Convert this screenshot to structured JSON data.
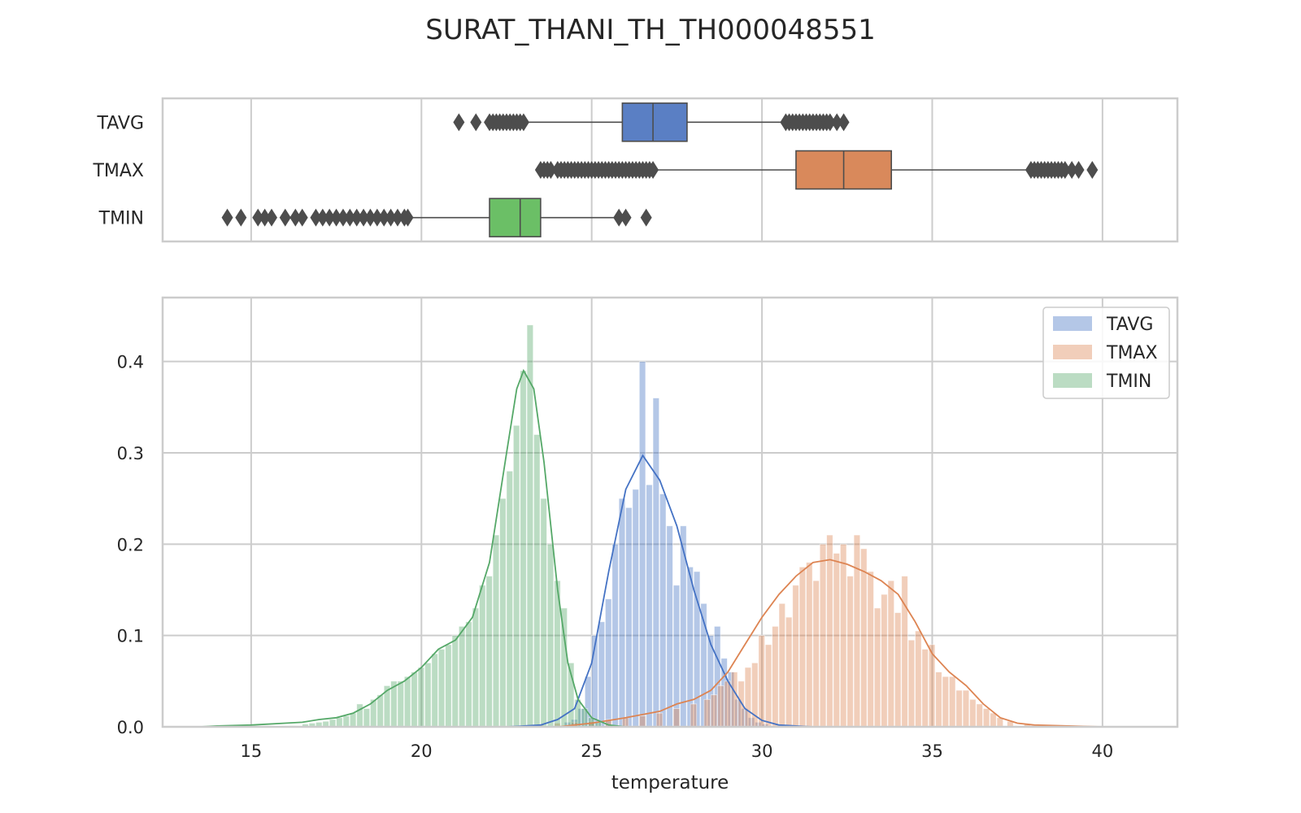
{
  "chart_data": [
    {
      "type": "box",
      "title": "SURAT_THANI_TH_TH000048551",
      "xlim": [
        12.4,
        42.2
      ],
      "grid": true,
      "series": [
        {
          "name": "TAVG",
          "color": "#5a7fc4",
          "q1": 25.9,
          "median": 26.8,
          "q3": 27.8,
          "whisker_low": 23.1,
          "whisker_high": 30.6,
          "outliers": [
            21.1,
            21.6,
            22.0,
            22.1,
            22.2,
            22.3,
            22.4,
            22.5,
            22.6,
            22.7,
            22.8,
            22.9,
            23.0,
            30.7,
            30.8,
            30.9,
            31.0,
            31.1,
            31.2,
            31.3,
            31.4,
            31.5,
            31.6,
            31.7,
            31.8,
            31.9,
            32.0,
            32.2,
            32.4
          ]
        },
        {
          "name": "TMAX",
          "color": "#d9895b",
          "q1": 31.0,
          "median": 32.4,
          "q3": 33.8,
          "whisker_low": 26.9,
          "whisker_high": 37.8,
          "outliers": [
            23.5,
            23.6,
            23.7,
            23.8,
            24.0,
            24.1,
            24.2,
            24.3,
            24.4,
            24.5,
            24.6,
            24.7,
            24.8,
            24.9,
            25.0,
            25.1,
            25.2,
            25.3,
            25.4,
            25.5,
            25.6,
            25.7,
            25.8,
            25.9,
            26.0,
            26.1,
            26.2,
            26.3,
            26.4,
            26.5,
            26.6,
            26.7,
            26.8,
            37.9,
            38.0,
            38.1,
            38.2,
            38.3,
            38.4,
            38.5,
            38.6,
            38.7,
            38.8,
            38.9,
            39.1,
            39.3,
            39.7
          ]
        },
        {
          "name": "TMIN",
          "color": "#6bbf66",
          "q1": 22.0,
          "median": 22.9,
          "q3": 23.5,
          "whisker_low": 19.7,
          "whisker_high": 25.7,
          "outliers": [
            14.3,
            14.7,
            15.2,
            15.4,
            15.6,
            16.0,
            16.3,
            16.5,
            16.9,
            17.1,
            17.3,
            17.5,
            17.7,
            17.9,
            18.1,
            18.3,
            18.5,
            18.7,
            18.9,
            19.1,
            19.3,
            19.5,
            19.6,
            25.8,
            26.0,
            26.6
          ]
        }
      ]
    },
    {
      "type": "histogram",
      "xlabel": "temperature",
      "xlim": [
        12.4,
        42.2
      ],
      "ylim": [
        0,
        0.47
      ],
      "xticks": [
        15,
        20,
        25,
        30,
        35,
        40
      ],
      "yticks": [
        0.0,
        0.1,
        0.2,
        0.3,
        0.4
      ],
      "ytick_labels": [
        "0.0",
        "0.1",
        "0.2",
        "0.3",
        "0.4"
      ],
      "legend": "top-right",
      "series": [
        {
          "name": "TAVG",
          "color": "#4472c4",
          "bins": [
            [
              24.3,
              0.005
            ],
            [
              24.5,
              0.008
            ],
            [
              24.7,
              0.02
            ],
            [
              24.9,
              0.055
            ],
            [
              25.1,
              0.1
            ],
            [
              25.3,
              0.115
            ],
            [
              25.5,
              0.14
            ],
            [
              25.7,
              0.2
            ],
            [
              25.9,
              0.25
            ],
            [
              26.1,
              0.24
            ],
            [
              26.3,
              0.26
            ],
            [
              26.5,
              0.4
            ],
            [
              26.7,
              0.265
            ],
            [
              26.9,
              0.36
            ],
            [
              27.1,
              0.255
            ],
            [
              27.3,
              0.22
            ],
            [
              27.5,
              0.155
            ],
            [
              27.7,
              0.22
            ],
            [
              27.9,
              0.175
            ],
            [
              28.1,
              0.17
            ],
            [
              28.3,
              0.135
            ],
            [
              28.5,
              0.1
            ],
            [
              28.7,
              0.11
            ],
            [
              28.9,
              0.075
            ],
            [
              29.1,
              0.06
            ],
            [
              29.3,
              0.03
            ],
            [
              29.5,
              0.02
            ],
            [
              29.7,
              0.01
            ],
            [
              29.9,
              0.005
            ],
            [
              30.1,
              0.003
            ]
          ],
          "kde": [
            [
              22.5,
              0
            ],
            [
              23.5,
              0.002
            ],
            [
              24,
              0.008
            ],
            [
              24.5,
              0.02
            ],
            [
              25,
              0.07
            ],
            [
              25.5,
              0.17
            ],
            [
              26,
              0.26
            ],
            [
              26.5,
              0.297
            ],
            [
              27,
              0.27
            ],
            [
              27.5,
              0.22
            ],
            [
              28,
              0.15
            ],
            [
              28.5,
              0.09
            ],
            [
              29,
              0.05
            ],
            [
              29.5,
              0.02
            ],
            [
              30,
              0.007
            ],
            [
              30.5,
              0.002
            ],
            [
              31.5,
              0
            ]
          ]
        },
        {
          "name": "TMAX",
          "color": "#dd8452",
          "bins": [
            [
              23.5,
              0.003
            ],
            [
              24.0,
              0.004
            ],
            [
              24.5,
              0.005
            ],
            [
              25.0,
              0.006
            ],
            [
              25.5,
              0.008
            ],
            [
              26.0,
              0.01
            ],
            [
              26.5,
              0.012
            ],
            [
              27.0,
              0.015
            ],
            [
              27.5,
              0.02
            ],
            [
              28.0,
              0.025
            ],
            [
              28.4,
              0.03
            ],
            [
              28.6,
              0.035
            ],
            [
              28.8,
              0.045
            ],
            [
              29.0,
              0.05
            ],
            [
              29.2,
              0.06
            ],
            [
              29.4,
              0.05
            ],
            [
              29.6,
              0.065
            ],
            [
              29.8,
              0.07
            ],
            [
              30.0,
              0.1
            ],
            [
              30.2,
              0.09
            ],
            [
              30.4,
              0.11
            ],
            [
              30.6,
              0.135
            ],
            [
              30.8,
              0.12
            ],
            [
              31.0,
              0.155
            ],
            [
              31.2,
              0.175
            ],
            [
              31.4,
              0.18
            ],
            [
              31.6,
              0.16
            ],
            [
              31.8,
              0.2
            ],
            [
              32.0,
              0.21
            ],
            [
              32.2,
              0.19
            ],
            [
              32.4,
              0.2
            ],
            [
              32.6,
              0.165
            ],
            [
              32.8,
              0.21
            ],
            [
              33.0,
              0.195
            ],
            [
              33.2,
              0.17
            ],
            [
              33.4,
              0.13
            ],
            [
              33.6,
              0.145
            ],
            [
              33.8,
              0.16
            ],
            [
              34.0,
              0.125
            ],
            [
              34.2,
              0.165
            ],
            [
              34.4,
              0.095
            ],
            [
              34.6,
              0.105
            ],
            [
              34.8,
              0.085
            ],
            [
              35.0,
              0.09
            ],
            [
              35.2,
              0.06
            ],
            [
              35.4,
              0.055
            ],
            [
              35.6,
              0.055
            ],
            [
              35.8,
              0.04
            ],
            [
              36.0,
              0.04
            ],
            [
              36.2,
              0.03
            ],
            [
              36.4,
              0.025
            ],
            [
              36.6,
              0.02
            ],
            [
              36.8,
              0.015
            ],
            [
              37.0,
              0.01
            ],
            [
              37.3,
              0.006
            ],
            [
              37.8,
              0.003
            ]
          ],
          "kde": [
            [
              24,
              0
            ],
            [
              25,
              0.004
            ],
            [
              26,
              0.01
            ],
            [
              27,
              0.017
            ],
            [
              27.5,
              0.025
            ],
            [
              28,
              0.03
            ],
            [
              28.5,
              0.04
            ],
            [
              29,
              0.06
            ],
            [
              29.5,
              0.09
            ],
            [
              30,
              0.12
            ],
            [
              30.5,
              0.145
            ],
            [
              31,
              0.165
            ],
            [
              31.5,
              0.18
            ],
            [
              32,
              0.183
            ],
            [
              32.5,
              0.178
            ],
            [
              33,
              0.17
            ],
            [
              33.5,
              0.16
            ],
            [
              34,
              0.145
            ],
            [
              34.5,
              0.115
            ],
            [
              35,
              0.08
            ],
            [
              35.5,
              0.06
            ],
            [
              36,
              0.045
            ],
            [
              36.5,
              0.025
            ],
            [
              37,
              0.01
            ],
            [
              37.5,
              0.004
            ],
            [
              38,
              0.002
            ],
            [
              39,
              0.001
            ],
            [
              40,
              0
            ]
          ]
        },
        {
          "name": "TMIN",
          "color": "#55a868",
          "bins": [
            [
              16.6,
              0.003
            ],
            [
              16.8,
              0.004
            ],
            [
              17.0,
              0.005
            ],
            [
              17.2,
              0.006
            ],
            [
              17.4,
              0.008
            ],
            [
              17.6,
              0.01
            ],
            [
              17.8,
              0.012
            ],
            [
              18.0,
              0.015
            ],
            [
              18.2,
              0.025
            ],
            [
              18.4,
              0.02
            ],
            [
              18.6,
              0.03
            ],
            [
              18.8,
              0.035
            ],
            [
              19.0,
              0.045
            ],
            [
              19.2,
              0.05
            ],
            [
              19.4,
              0.05
            ],
            [
              19.6,
              0.055
            ],
            [
              19.8,
              0.06
            ],
            [
              20.0,
              0.065
            ],
            [
              20.2,
              0.07
            ],
            [
              20.4,
              0.08
            ],
            [
              20.6,
              0.085
            ],
            [
              20.8,
              0.09
            ],
            [
              21.0,
              0.1
            ],
            [
              21.2,
              0.11
            ],
            [
              21.4,
              0.115
            ],
            [
              21.6,
              0.13
            ],
            [
              21.8,
              0.155
            ],
            [
              22.0,
              0.165
            ],
            [
              22.2,
              0.21
            ],
            [
              22.4,
              0.25
            ],
            [
              22.6,
              0.28
            ],
            [
              22.8,
              0.33
            ],
            [
              23.0,
              0.39
            ],
            [
              23.2,
              0.44
            ],
            [
              23.4,
              0.32
            ],
            [
              23.6,
              0.25
            ],
            [
              23.8,
              0.2
            ],
            [
              24.0,
              0.16
            ],
            [
              24.2,
              0.13
            ],
            [
              24.4,
              0.07
            ],
            [
              24.6,
              0.03
            ],
            [
              24.8,
              0.02
            ],
            [
              25.0,
              0.01
            ],
            [
              25.2,
              0.005
            ]
          ],
          "kde": [
            [
              13.5,
              0
            ],
            [
              14,
              0.001
            ],
            [
              15,
              0.002
            ],
            [
              16,
              0.004
            ],
            [
              16.5,
              0.005
            ],
            [
              17,
              0.008
            ],
            [
              17.5,
              0.01
            ],
            [
              18,
              0.015
            ],
            [
              18.5,
              0.025
            ],
            [
              19,
              0.04
            ],
            [
              19.5,
              0.05
            ],
            [
              20,
              0.065
            ],
            [
              20.5,
              0.085
            ],
            [
              21,
              0.095
            ],
            [
              21.5,
              0.12
            ],
            [
              22,
              0.18
            ],
            [
              22.5,
              0.3
            ],
            [
              22.8,
              0.37
            ],
            [
              23,
              0.39
            ],
            [
              23.3,
              0.37
            ],
            [
              23.6,
              0.29
            ],
            [
              24,
              0.15
            ],
            [
              24.3,
              0.07
            ],
            [
              24.6,
              0.03
            ],
            [
              25,
              0.01
            ],
            [
              25.5,
              0.002
            ],
            [
              26,
              0
            ]
          ]
        }
      ]
    }
  ]
}
